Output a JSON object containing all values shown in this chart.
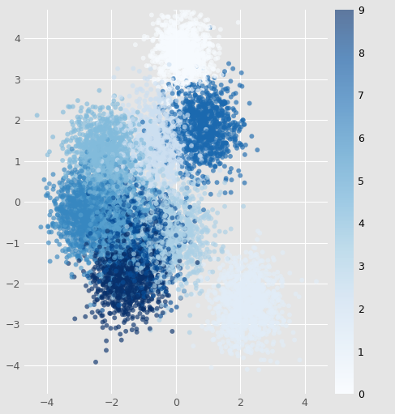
{
  "title": "",
  "xlim": [
    -4.7,
    4.7
  ],
  "ylim": [
    -4.7,
    4.7
  ],
  "xticks": [
    -4,
    -2,
    0,
    2,
    4
  ],
  "yticks": [
    -4,
    -3,
    -2,
    -1,
    0,
    1,
    2,
    3,
    4
  ],
  "colormap": "Blues",
  "cbar_ticks": [
    0,
    1,
    2,
    3,
    4,
    5,
    6,
    7,
    8,
    9
  ],
  "n_classes": 10,
  "n_samples_per_class": 1000,
  "alpha": 0.65,
  "marker_size": 18,
  "background_color": "#e5e5e5",
  "grid_color": "white",
  "class_centers": [
    [
      0.2,
      3.6
    ],
    [
      2.2,
      -2.5
    ],
    [
      -0.5,
      1.5
    ],
    [
      -0.2,
      -0.8
    ],
    [
      -2.2,
      1.2
    ],
    [
      -1.8,
      -0.5
    ],
    [
      -2.8,
      -0.3
    ],
    [
      0.8,
      1.8
    ],
    [
      -1.2,
      -1.0
    ],
    [
      -1.5,
      -1.8
    ]
  ],
  "class_stds": [
    0.45,
    0.55,
    0.6,
    0.65,
    0.55,
    0.6,
    0.5,
    0.55,
    0.6,
    0.55
  ],
  "seed": 42
}
